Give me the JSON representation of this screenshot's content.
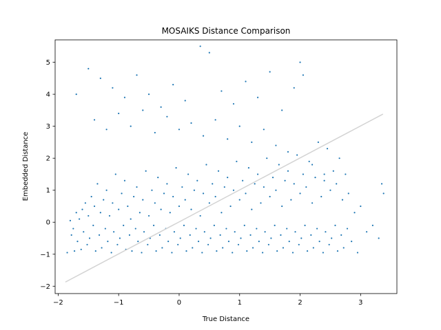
{
  "chart_data": {
    "type": "scatter",
    "title": "MOSAIKS Distance Comparison",
    "xlabel": "True Distance",
    "ylabel": "Embedded Distance",
    "xlim": [
      -2.05,
      3.6
    ],
    "ylim": [
      -2.23,
      5.7
    ],
    "xticks": [
      -2,
      -1,
      0,
      1,
      2,
      3
    ],
    "yticks": [
      -2,
      -1,
      0,
      1,
      2,
      3,
      4,
      5
    ],
    "xtick_labels": [
      "−2",
      "−1",
      "0",
      "1",
      "2",
      "3"
    ],
    "ytick_labels": [
      "−2",
      "−1",
      "0",
      "1",
      "2",
      "3",
      "4",
      "5"
    ],
    "grid": false,
    "legend": "none",
    "series": [
      {
        "kind": "scatter",
        "color": "#1f77b4",
        "points": [
          [
            -1.85,
            -0.95
          ],
          [
            -1.8,
            0.05
          ],
          [
            -1.78,
            -0.4
          ],
          [
            -1.75,
            -0.2
          ],
          [
            -1.73,
            -0.9
          ],
          [
            -1.7,
            0.3
          ],
          [
            -1.68,
            -0.6
          ],
          [
            -1.65,
            0.1
          ],
          [
            -1.62,
            -0.85
          ],
          [
            -1.6,
            0.4
          ],
          [
            -1.58,
            -0.3
          ],
          [
            -1.55,
            0.6
          ],
          [
            -1.52,
            -0.7
          ],
          [
            -1.5,
            0.2
          ],
          [
            -1.48,
            -0.5
          ],
          [
            -1.45,
            0.8
          ],
          [
            -1.42,
            -0.1
          ],
          [
            -1.4,
            0.5
          ],
          [
            -1.38,
            -0.9
          ],
          [
            -1.35,
            1.2
          ],
          [
            -1.32,
            -0.4
          ],
          [
            -1.3,
            0.3
          ],
          [
            -1.28,
            -0.8
          ],
          [
            -1.25,
            0.7
          ],
          [
            -1.22,
            -0.2
          ],
          [
            -1.2,
            1.0
          ],
          [
            -1.18,
            -0.6
          ],
          [
            -1.15,
            0.2
          ],
          [
            -1.12,
            -0.95
          ],
          [
            -1.1,
            0.6
          ],
          [
            -1.08,
            -0.3
          ],
          [
            -1.05,
            1.5
          ],
          [
            -1.02,
            -0.7
          ],
          [
            -1.0,
            0.4
          ],
          [
            -0.98,
            -0.5
          ],
          [
            -0.95,
            0.9
          ],
          [
            -0.92,
            -0.1
          ],
          [
            -0.9,
            1.3
          ],
          [
            -0.88,
            -0.85
          ],
          [
            -0.85,
            0.5
          ],
          [
            -0.82,
            -0.4
          ],
          [
            -0.8,
            0.1
          ],
          [
            -0.78,
            -0.9
          ],
          [
            -0.75,
            0.8
          ],
          [
            -0.72,
            -0.2
          ],
          [
            -0.7,
            1.1
          ],
          [
            -0.68,
            -0.6
          ],
          [
            -0.65,
            0.3
          ],
          [
            -0.62,
            -0.95
          ],
          [
            -0.6,
            0.7
          ],
          [
            -0.58,
            -0.3
          ],
          [
            -0.55,
            1.6
          ],
          [
            -0.52,
            -0.7
          ],
          [
            -0.5,
            0.2
          ],
          [
            -0.48,
            -0.5
          ],
          [
            -0.45,
            1.0
          ],
          [
            -0.42,
            -0.1
          ],
          [
            -0.4,
            0.6
          ],
          [
            -0.38,
            -0.9
          ],
          [
            -0.35,
            1.4
          ],
          [
            -0.32,
            -0.4
          ],
          [
            -0.3,
            0.4
          ],
          [
            -0.28,
            -0.8
          ],
          [
            -0.25,
            0.9
          ],
          [
            -0.22,
            -0.2
          ],
          [
            -0.2,
            1.2
          ],
          [
            -0.18,
            -0.6
          ],
          [
            -0.15,
            0.3
          ],
          [
            -0.12,
            -0.95
          ],
          [
            -0.1,
            0.8
          ],
          [
            -0.08,
            -0.3
          ],
          [
            -0.05,
            1.7
          ],
          [
            -0.02,
            -0.7
          ],
          [
            0.0,
            0.5
          ],
          [
            0.02,
            -0.5
          ],
          [
            0.05,
            1.1
          ],
          [
            0.08,
            -0.1
          ],
          [
            0.1,
            0.7
          ],
          [
            0.12,
            -0.9
          ],
          [
            0.15,
            1.5
          ],
          [
            0.18,
            -0.4
          ],
          [
            0.2,
            0.4
          ],
          [
            0.22,
            -0.8
          ],
          [
            0.25,
            1.0
          ],
          [
            0.28,
            -0.2
          ],
          [
            0.3,
            1.3
          ],
          [
            0.32,
            -0.6
          ],
          [
            0.35,
            0.2
          ],
          [
            0.38,
            -0.95
          ],
          [
            0.4,
            0.9
          ],
          [
            0.42,
            -0.3
          ],
          [
            0.45,
            1.8
          ],
          [
            0.48,
            -0.7
          ],
          [
            0.5,
            0.6
          ],
          [
            0.52,
            -0.5
          ],
          [
            0.55,
            1.2
          ],
          [
            0.58,
            -0.1
          ],
          [
            0.6,
            0.8
          ],
          [
            0.62,
            -0.9
          ],
          [
            0.65,
            1.6
          ],
          [
            0.68,
            -0.4
          ],
          [
            0.7,
            0.3
          ],
          [
            0.72,
            -0.8
          ],
          [
            0.75,
            1.1
          ],
          [
            0.78,
            -0.2
          ],
          [
            0.8,
            1.4
          ],
          [
            0.82,
            -0.6
          ],
          [
            0.85,
            0.5
          ],
          [
            0.88,
            -0.95
          ],
          [
            0.9,
            1.0
          ],
          [
            0.92,
            -0.3
          ],
          [
            0.95,
            1.9
          ],
          [
            0.98,
            -0.7
          ],
          [
            1.0,
            0.7
          ],
          [
            1.02,
            -0.5
          ],
          [
            1.05,
            1.3
          ],
          [
            1.08,
            -0.1
          ],
          [
            1.1,
            0.9
          ],
          [
            1.12,
            -0.9
          ],
          [
            1.15,
            1.7
          ],
          [
            1.18,
            -0.4
          ],
          [
            1.2,
            0.4
          ],
          [
            1.22,
            -0.8
          ],
          [
            1.25,
            1.2
          ],
          [
            1.28,
            -0.2
          ],
          [
            1.3,
            1.5
          ],
          [
            1.32,
            -0.6
          ],
          [
            1.35,
            0.6
          ],
          [
            1.38,
            -0.95
          ],
          [
            1.4,
            1.1
          ],
          [
            1.42,
            -0.3
          ],
          [
            1.45,
            2.0
          ],
          [
            1.48,
            -0.7
          ],
          [
            1.5,
            0.8
          ],
          [
            1.52,
            -0.5
          ],
          [
            1.55,
            1.4
          ],
          [
            1.58,
            -0.1
          ],
          [
            1.6,
            1.0
          ],
          [
            1.62,
            -0.9
          ],
          [
            1.65,
            1.8
          ],
          [
            1.68,
            -0.4
          ],
          [
            1.7,
            0.5
          ],
          [
            1.72,
            -0.8
          ],
          [
            1.75,
            1.3
          ],
          [
            1.78,
            -0.2
          ],
          [
            1.8,
            1.6
          ],
          [
            1.82,
            -0.6
          ],
          [
            1.85,
            0.7
          ],
          [
            1.88,
            -0.95
          ],
          [
            1.9,
            1.2
          ],
          [
            1.92,
            -0.3
          ],
          [
            1.95,
            2.1
          ],
          [
            1.98,
            -0.7
          ],
          [
            2.0,
            0.9
          ],
          [
            2.02,
            -0.5
          ],
          [
            2.05,
            1.5
          ],
          [
            2.08,
            -0.1
          ],
          [
            2.1,
            1.1
          ],
          [
            2.12,
            -0.9
          ],
          [
            2.15,
            1.9
          ],
          [
            2.18,
            -0.4
          ],
          [
            2.2,
            0.6
          ],
          [
            2.22,
            -0.8
          ],
          [
            2.25,
            1.4
          ],
          [
            2.28,
            -0.2
          ],
          [
            2.3,
            2.5
          ],
          [
            2.32,
            -0.6
          ],
          [
            2.35,
            0.8
          ],
          [
            2.38,
            -0.95
          ],
          [
            2.4,
            1.3
          ],
          [
            2.42,
            -0.3
          ],
          [
            2.45,
            2.3
          ],
          [
            2.48,
            -0.7
          ],
          [
            2.5,
            1.0
          ],
          [
            2.52,
            -0.5
          ],
          [
            2.55,
            1.6
          ],
          [
            2.58,
            -0.1
          ],
          [
            2.6,
            1.2
          ],
          [
            2.62,
            -0.9
          ],
          [
            2.65,
            2.0
          ],
          [
            2.68,
            -0.4
          ],
          [
            2.7,
            0.7
          ],
          [
            2.72,
            -0.8
          ],
          [
            2.75,
            1.5
          ],
          [
            2.78,
            -0.2
          ],
          [
            2.8,
            0.9
          ],
          [
            2.85,
            -0.6
          ],
          [
            2.9,
            0.3
          ],
          [
            2.95,
            -0.95
          ],
          [
            3.0,
            0.5
          ],
          [
            3.1,
            -0.3
          ],
          [
            3.2,
            -0.1
          ],
          [
            3.3,
            -0.5
          ],
          [
            3.35,
            1.2
          ],
          [
            3.38,
            0.9
          ],
          [
            -1.5,
            4.8
          ],
          [
            -1.3,
            4.5
          ],
          [
            -1.1,
            4.2
          ],
          [
            -0.9,
            3.9
          ],
          [
            -0.7,
            4.6
          ],
          [
            -0.5,
            4.0
          ],
          [
            -0.3,
            3.6
          ],
          [
            -0.1,
            4.3
          ],
          [
            0.1,
            3.8
          ],
          [
            0.35,
            5.5
          ],
          [
            0.5,
            5.3
          ],
          [
            0.7,
            4.1
          ],
          [
            0.9,
            3.7
          ],
          [
            1.1,
            4.4
          ],
          [
            1.3,
            3.9
          ],
          [
            1.5,
            4.7
          ],
          [
            1.7,
            3.5
          ],
          [
            1.9,
            4.2
          ],
          [
            2.0,
            5.0
          ],
          [
            2.05,
            4.6
          ],
          [
            -1.7,
            4.0
          ],
          [
            -1.4,
            3.2
          ],
          [
            -1.2,
            2.9
          ],
          [
            -1.0,
            3.4
          ],
          [
            -0.8,
            3.0
          ],
          [
            -0.6,
            3.5
          ],
          [
            -0.4,
            2.8
          ],
          [
            -0.2,
            3.3
          ],
          [
            0.0,
            2.9
          ],
          [
            0.2,
            3.1
          ],
          [
            0.4,
            2.7
          ],
          [
            0.6,
            3.2
          ],
          [
            0.8,
            2.6
          ],
          [
            1.0,
            3.0
          ],
          [
            1.2,
            2.5
          ],
          [
            1.4,
            2.9
          ],
          [
            1.6,
            2.4
          ],
          [
            1.8,
            2.2
          ],
          [
            2.2,
            1.8
          ],
          [
            2.4,
            1.5
          ]
        ]
      },
      {
        "kind": "line",
        "color": "#d3d3d3",
        "points": [
          [
            -1.88,
            -1.87
          ],
          [
            3.37,
            3.38
          ]
        ]
      }
    ]
  }
}
